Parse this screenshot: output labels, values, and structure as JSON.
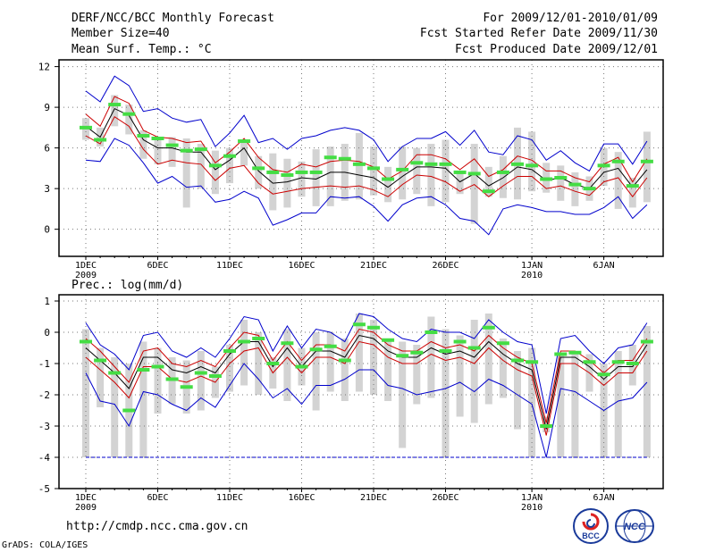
{
  "header": {
    "left": [
      "DERF/NCC/BCC Monthly Forecast",
      "Member Size=40",
      "Mean Surf. Temp.: °C"
    ],
    "right": [
      "For 2009/12/01-2010/01/09",
      "Fcst Started Refer Date 2009/11/30",
      "Fcst Produced Date 2009/12/01"
    ]
  },
  "footer": {
    "url": "http://cmdp.ncc.cma.gov.cn",
    "credit": "GrADS: COLA/IGES"
  },
  "logos": {
    "bcc_text": "BCC",
    "ncc_text": "NCC"
  },
  "colors": {
    "ensemble_max_min": "#0000cc",
    "spread": "#cc0000",
    "mean": "#000000",
    "observed": "#44dd44",
    "box": "#d3d3d3",
    "floor_line": "#0000cc"
  },
  "chart_data": [
    {
      "type": "line",
      "name": "temperature",
      "ylabel": "",
      "ylim": [
        -2,
        12.5
      ],
      "yticks": [
        0,
        3,
        6,
        9,
        12
      ],
      "x_ticks": [
        {
          "day": 1,
          "label": "1DEC",
          "sub": "2009"
        },
        {
          "day": 6,
          "label": "6DEC",
          "sub": ""
        },
        {
          "day": 11,
          "label": "11DEC",
          "sub": ""
        },
        {
          "day": 16,
          "label": "16DEC",
          "sub": ""
        },
        {
          "day": 21,
          "label": "21DEC",
          "sub": ""
        },
        {
          "day": 26,
          "label": "26DEC",
          "sub": ""
        },
        {
          "day": 32,
          "label": "1JAN",
          "sub": "2010"
        },
        {
          "day": 37,
          "label": "6JAN",
          "sub": ""
        }
      ],
      "x": [
        1,
        2,
        3,
        4,
        5,
        6,
        7,
        8,
        9,
        10,
        11,
        12,
        13,
        14,
        15,
        16,
        17,
        18,
        19,
        20,
        21,
        22,
        23,
        24,
        25,
        26,
        27,
        28,
        29,
        30,
        31,
        32,
        33,
        34,
        35,
        36,
        37,
        38,
        39,
        40
      ],
      "series": [
        {
          "name": "ens_max",
          "values": [
            10.2,
            9.4,
            11.3,
            10.6,
            8.7,
            8.9,
            8.2,
            7.9,
            8.1,
            6.1,
            7.1,
            8.4,
            6.4,
            6.7,
            5.9,
            6.7,
            6.9,
            7.3,
            7.5,
            7.3,
            6.6,
            5.0,
            6.1,
            6.7,
            6.7,
            7.2,
            6.2,
            7.3,
            5.7,
            5.5,
            6.9,
            6.6,
            5.1,
            5.8,
            4.9,
            4.3,
            6.3,
            6.3,
            4.8,
            6.5
          ]
        },
        {
          "name": "upper_spread",
          "values": [
            8.5,
            7.6,
            9.8,
            9.3,
            7.3,
            6.8,
            6.7,
            6.4,
            6.5,
            4.9,
            5.7,
            6.7,
            5.3,
            4.4,
            4.2,
            4.8,
            4.6,
            5.0,
            5.1,
            5.0,
            4.6,
            3.7,
            4.3,
            5.5,
            5.5,
            5.2,
            4.4,
            5.2,
            3.9,
            4.4,
            5.4,
            5.1,
            4.3,
            4.3,
            3.8,
            3.5,
            4.8,
            5.3,
            3.5,
            5.2
          ]
        },
        {
          "name": "mean",
          "values": [
            7.6,
            6.8,
            8.9,
            8.4,
            6.6,
            6.0,
            6.0,
            5.7,
            5.7,
            4.4,
            5.1,
            6.0,
            4.3,
            3.4,
            3.5,
            3.8,
            3.7,
            4.2,
            4.2,
            4.0,
            3.8,
            3.1,
            3.9,
            4.6,
            4.6,
            4.5,
            3.5,
            4.1,
            3.2,
            3.8,
            4.6,
            4.4,
            3.6,
            3.8,
            3.3,
            3.0,
            4.2,
            4.5,
            3.1,
            4.4
          ]
        },
        {
          "name": "lower_spread",
          "values": [
            6.9,
            6.3,
            8.3,
            7.6,
            5.9,
            4.8,
            5.1,
            4.9,
            4.8,
            3.6,
            4.5,
            4.7,
            3.4,
            2.6,
            2.8,
            3.0,
            3.1,
            3.2,
            3.1,
            3.2,
            2.9,
            2.4,
            3.3,
            4.0,
            3.9,
            3.5,
            2.8,
            3.3,
            2.4,
            3.2,
            3.9,
            3.9,
            3.0,
            3.2,
            2.8,
            2.5,
            3.5,
            3.8,
            2.4,
            3.8
          ]
        },
        {
          "name": "ens_min",
          "values": [
            5.1,
            5.0,
            6.7,
            6.2,
            4.9,
            3.4,
            3.9,
            3.1,
            3.2,
            2.0,
            2.2,
            2.8,
            2.3,
            0.3,
            0.7,
            1.2,
            1.2,
            2.4,
            2.3,
            2.4,
            1.7,
            0.6,
            1.8,
            2.3,
            2.4,
            1.8,
            0.8,
            0.6,
            -0.4,
            1.5,
            1.8,
            1.6,
            1.3,
            1.3,
            1.1,
            1.1,
            1.6,
            2.4,
            0.8,
            1.8
          ]
        }
      ],
      "boxes": [
        [
          6.6,
          8.2
        ],
        [
          6.1,
          7.5
        ],
        [
          7.6,
          9.9
        ],
        [
          7.0,
          9.2
        ],
        [
          5.2,
          7.3
        ],
        [
          4.8,
          6.6
        ],
        [
          4.6,
          6.8
        ],
        [
          1.6,
          6.7
        ],
        [
          3.0,
          6.3
        ],
        [
          2.6,
          5.8
        ],
        [
          3.4,
          6.0
        ],
        [
          4.7,
          6.4
        ],
        [
          3.0,
          5.4
        ],
        [
          1.4,
          5.6
        ],
        [
          1.6,
          5.2
        ],
        [
          2.4,
          5.0
        ],
        [
          1.7,
          5.9
        ],
        [
          1.7,
          6.1
        ],
        [
          2.1,
          6.3
        ],
        [
          2.2,
          7.1
        ],
        [
          2.5,
          6.1
        ],
        [
          2.0,
          4.6
        ],
        [
          2.2,
          6.1
        ],
        [
          2.6,
          6.0
        ],
        [
          1.7,
          6.3
        ],
        [
          2.0,
          6.6
        ],
        [
          2.6,
          4.3
        ],
        [
          0.4,
          6.3
        ],
        [
          2.4,
          4.6
        ],
        [
          2.3,
          5.4
        ],
        [
          2.2,
          7.5
        ],
        [
          2.8,
          7.2
        ],
        [
          2.7,
          4.9
        ],
        [
          2.1,
          4.7
        ],
        [
          1.7,
          4.2
        ],
        [
          2.1,
          3.9
        ],
        [
          3.2,
          6.0
        ],
        [
          1.5,
          5.7
        ],
        [
          1.6,
          3.8
        ],
        [
          2.0,
          7.2
        ]
      ],
      "observed": [
        7.5,
        6.6,
        9.2,
        8.5,
        6.9,
        6.7,
        6.2,
        5.8,
        5.9,
        4.7,
        5.4,
        6.5,
        4.5,
        4.2,
        4.0,
        4.2,
        4.2,
        5.3,
        5.2,
        4.8,
        4.5,
        3.7,
        4.4,
        4.9,
        4.8,
        4.8,
        4.2,
        4.1,
        2.8,
        4.2,
        4.8,
        4.7,
        3.7,
        3.8,
        3.3,
        3.0,
        4.7,
        5.0,
        3.2,
        5.0
      ]
    },
    {
      "type": "line",
      "name": "precipitation",
      "title": "Prec.: log(mm/d)",
      "ylim": [
        -5,
        1.2
      ],
      "yticks": [
        -5,
        -4,
        -3,
        -2,
        -1,
        0,
        1
      ],
      "x_ticks": [
        {
          "day": 1,
          "label": "1DEC",
          "sub": "2009"
        },
        {
          "day": 6,
          "label": "6DEC",
          "sub": ""
        },
        {
          "day": 11,
          "label": "11DEC",
          "sub": ""
        },
        {
          "day": 16,
          "label": "16DEC",
          "sub": ""
        },
        {
          "day": 21,
          "label": "21DEC",
          "sub": ""
        },
        {
          "day": 26,
          "label": "26DEC",
          "sub": ""
        },
        {
          "day": 32,
          "label": "1JAN",
          "sub": "2010"
        },
        {
          "day": 37,
          "label": "6JAN",
          "sub": ""
        }
      ],
      "x": [
        1,
        2,
        3,
        4,
        5,
        6,
        7,
        8,
        9,
        10,
        11,
        12,
        13,
        14,
        15,
        16,
        17,
        18,
        19,
        20,
        21,
        22,
        23,
        24,
        25,
        26,
        27,
        28,
        29,
        30,
        31,
        32,
        33,
        34,
        35,
        36,
        37,
        38,
        39,
        40
      ],
      "floor": -4,
      "series": [
        {
          "name": "ens_max",
          "values": [
            0.3,
            -0.4,
            -0.7,
            -1.2,
            -0.1,
            0.0,
            -0.6,
            -0.8,
            -0.5,
            -0.8,
            -0.2,
            0.5,
            0.4,
            -0.6,
            0.2,
            -0.5,
            0.1,
            0.0,
            -0.3,
            0.6,
            0.5,
            0.1,
            -0.2,
            -0.3,
            0.1,
            0.0,
            0.0,
            -0.2,
            0.4,
            0.0,
            -0.3,
            -0.4,
            -2.6,
            -0.2,
            -0.1,
            -0.6,
            -1.0,
            -0.5,
            -0.4,
            0.3
          ]
        },
        {
          "name": "upper_spread",
          "values": [
            -0.2,
            -0.6,
            -1.1,
            -1.6,
            -0.6,
            -0.5,
            -1.0,
            -1.1,
            -0.9,
            -1.1,
            -0.5,
            0.0,
            -0.1,
            -0.9,
            -0.3,
            -0.9,
            -0.4,
            -0.4,
            -0.6,
            0.1,
            0.0,
            -0.4,
            -0.6,
            -0.6,
            -0.3,
            -0.5,
            -0.4,
            -0.6,
            -0.1,
            -0.5,
            -0.8,
            -1.0,
            -2.9,
            -0.6,
            -0.6,
            -0.9,
            -1.3,
            -0.9,
            -0.9,
            -0.2
          ]
        },
        {
          "name": "mean",
          "values": [
            -0.5,
            -0.9,
            -1.3,
            -1.8,
            -0.8,
            -0.8,
            -1.2,
            -1.3,
            -1.1,
            -1.3,
            -0.7,
            -0.3,
            -0.3,
            -1.1,
            -0.5,
            -1.1,
            -0.6,
            -0.6,
            -0.8,
            -0.1,
            -0.2,
            -0.6,
            -0.8,
            -0.8,
            -0.5,
            -0.7,
            -0.6,
            -0.8,
            -0.3,
            -0.7,
            -1.0,
            -1.2,
            -3.1,
            -0.8,
            -0.8,
            -1.1,
            -1.5,
            -1.1,
            -1.1,
            -0.4
          ]
        },
        {
          "name": "lower_spread",
          "values": [
            -0.8,
            -1.2,
            -1.6,
            -2.1,
            -1.1,
            -1.1,
            -1.5,
            -1.6,
            -1.4,
            -1.6,
            -1.0,
            -0.6,
            -0.5,
            -1.3,
            -0.8,
            -1.3,
            -0.8,
            -0.8,
            -1.0,
            -0.3,
            -0.4,
            -0.8,
            -1.0,
            -1.0,
            -0.7,
            -0.9,
            -0.8,
            -1.0,
            -0.5,
            -0.9,
            -1.2,
            -1.4,
            -3.3,
            -1.0,
            -1.0,
            -1.3,
            -1.7,
            -1.3,
            -1.3,
            -0.6
          ]
        },
        {
          "name": "ens_min",
          "values": [
            -1.3,
            -2.2,
            -2.3,
            -3.0,
            -1.9,
            -2.0,
            -2.3,
            -2.5,
            -2.1,
            -2.4,
            -1.7,
            -1.0,
            -1.5,
            -2.1,
            -1.8,
            -2.3,
            -1.7,
            -1.7,
            -1.5,
            -1.2,
            -1.2,
            -1.7,
            -1.8,
            -2.0,
            -1.9,
            -1.8,
            -1.6,
            -1.9,
            -1.5,
            -1.7,
            -2.0,
            -2.3,
            -4.0,
            -1.8,
            -1.9,
            -2.2,
            -2.5,
            -2.2,
            -2.1,
            -1.6
          ]
        }
      ],
      "boxes": [
        [
          -4.0,
          0.1
        ],
        [
          -2.4,
          -0.5
        ],
        [
          -4.0,
          -0.8
        ],
        [
          -4.0,
          -1.0
        ],
        [
          -4.0,
          -0.3
        ],
        [
          -2.6,
          -0.5
        ],
        [
          -2.3,
          -0.8
        ],
        [
          -2.6,
          -0.9
        ],
        [
          -2.5,
          -0.6
        ],
        [
          -2.1,
          -1.1
        ],
        [
          -1.9,
          -0.4
        ],
        [
          -1.7,
          0.4
        ],
        [
          -2.0,
          0.0
        ],
        [
          -1.8,
          -0.8
        ],
        [
          -2.2,
          0.1
        ],
        [
          -1.7,
          -0.5
        ],
        [
          -2.5,
          0.0
        ],
        [
          -1.9,
          0.0
        ],
        [
          -2.2,
          -0.2
        ],
        [
          -1.9,
          0.6
        ],
        [
          -2.0,
          0.4
        ],
        [
          -2.2,
          -0.2
        ],
        [
          -3.7,
          -0.3
        ],
        [
          -2.3,
          -0.4
        ],
        [
          -2.1,
          0.5
        ],
        [
          -4.0,
          0.1
        ],
        [
          -2.7,
          -0.1
        ],
        [
          -2.9,
          0.4
        ],
        [
          -2.3,
          0.6
        ],
        [
          -2.1,
          -0.2
        ],
        [
          -3.1,
          -0.6
        ],
        [
          -4.0,
          -0.5
        ],
        [
          -3.2,
          -2.7
        ],
        [
          -4.0,
          -0.7
        ],
        [
          -4.0,
          -0.6
        ],
        [
          -1.9,
          -0.7
        ],
        [
          -4.0,
          -1.0
        ],
        [
          -4.0,
          -0.6
        ],
        [
          -1.7,
          -0.4
        ],
        [
          -4.0,
          0.2
        ]
      ],
      "observed": [
        -0.3,
        -0.9,
        -1.3,
        -2.5,
        -1.2,
        -1.1,
        -1.5,
        -1.75,
        -1.3,
        -1.4,
        -0.6,
        -0.3,
        -0.2,
        -1.0,
        -0.35,
        -1.1,
        -0.55,
        -0.45,
        -0.9,
        0.25,
        0.15,
        -0.25,
        -0.75,
        -0.65,
        0.0,
        -0.6,
        -0.3,
        -0.5,
        0.15,
        -0.35,
        -0.9,
        -0.95,
        -3.0,
        -0.7,
        -0.65,
        -0.95,
        -1.35,
        -0.95,
        -1.0,
        -0.3
      ]
    }
  ]
}
